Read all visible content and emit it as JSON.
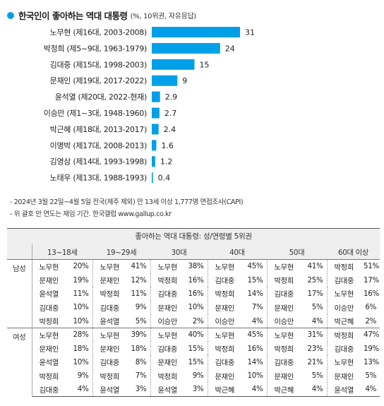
{
  "colors": {
    "accent": "#00a0e9",
    "bar": "#00a0e9"
  },
  "header": {
    "title": "한국인이 좋아하는 역대 대통령",
    "subtitle": "(%, 10위권, 자유응답)"
  },
  "chart_data": {
    "type": "bar",
    "orientation": "horizontal",
    "categories": [
      "노무현 (제16대, 2003-2008)",
      "박정희 (제5~9대, 1963-1979)",
      "김대중 (제15대, 1998-2003)",
      "문재인 (제19대, 2017-2022)",
      "윤석열 (제20대, 2022-현재)",
      "이승만 (제1~3대, 1948-1960)",
      "박근혜 (제18대, 2013-2017)",
      "이명박 (제17대, 2008-2013)",
      "김영삼 (제14대, 1993-1998)",
      "노태우 (제13대, 1988-1993)"
    ],
    "values": [
      31,
      24,
      15,
      9,
      2.9,
      2.7,
      2.4,
      1.6,
      1.2,
      0.4
    ],
    "value_labels": [
      "31",
      "24",
      "15",
      "9",
      "2.9",
      "2.7",
      "2.4",
      "1.6",
      "1.2",
      "0.4"
    ],
    "xlim": [
      0,
      31
    ],
    "grid": false,
    "legend": "none"
  },
  "notes": [
    "- 2024년 3월 22일~4월 5일 전국(제주 제외) 만 13세 이상 1,777명 면접조사(CAPI)",
    "- 위 괄호 안 연도는 재임 기간. 한국갤럽 www.gallup.co.kr"
  ],
  "table": {
    "title": "좋아하는 역대 대통령: 성/연령별 5위권",
    "age_groups": [
      "13~18세",
      "19~29세",
      "30대",
      "40대",
      "50대",
      "60대 이상"
    ],
    "genders": [
      {
        "label": "남성",
        "rows": [
          [
            [
              "노무현",
              "20%"
            ],
            [
              "노무현",
              "41%"
            ],
            [
              "노무현",
              "38%"
            ],
            [
              "노무현",
              "45%"
            ],
            [
              "노무현",
              "41%"
            ],
            [
              "박정희",
              "51%"
            ]
          ],
          [
            [
              "문재인",
              "19%"
            ],
            [
              "문재인",
              "12%"
            ],
            [
              "박정희",
              "16%"
            ],
            [
              "김대중",
              "15%"
            ],
            [
              "박정희",
              "25%"
            ],
            [
              "김대중",
              "17%"
            ]
          ],
          [
            [
              "윤석열",
              "11%"
            ],
            [
              "박정희",
              "11%"
            ],
            [
              "김대중",
              "16%"
            ],
            [
              "박정희",
              "14%"
            ],
            [
              "김대중",
              "17%"
            ],
            [
              "노무현",
              "16%"
            ]
          ],
          [
            [
              "김대중",
              "10%"
            ],
            [
              "김대중",
              "9%"
            ],
            [
              "문재인",
              "10%"
            ],
            [
              "문재인",
              "7%"
            ],
            [
              "문재인",
              "5%"
            ],
            [
              "이승만",
              "6%"
            ]
          ],
          [
            [
              "박정희",
              "10%"
            ],
            [
              "윤석열",
              "5%"
            ],
            [
              "이승만",
              "2%"
            ],
            [
              "이승만",
              "4%"
            ],
            [
              "이승만",
              "4%"
            ],
            [
              "박근혜",
              "2%"
            ]
          ]
        ]
      },
      {
        "label": "여성",
        "rows": [
          [
            [
              "노무현",
              "28%"
            ],
            [
              "노무현",
              "39%"
            ],
            [
              "노무현",
              "40%"
            ],
            [
              "노무현",
              "45%"
            ],
            [
              "노무현",
              "31%"
            ],
            [
              "박정희",
              "47%"
            ]
          ],
          [
            [
              "문재인",
              "18%"
            ],
            [
              "문재인",
              "18%"
            ],
            [
              "김대중",
              "15%"
            ],
            [
              "박정희",
              "16%"
            ],
            [
              "박정희",
              "23%"
            ],
            [
              "김대중",
              "19%"
            ]
          ],
          [
            [
              "윤석열",
              "10%"
            ],
            [
              "김대중",
              "8%"
            ],
            [
              "문재인",
              "15%"
            ],
            [
              "김대중",
              "14%"
            ],
            [
              "김대중",
              "21%"
            ],
            [
              "노무현",
              "13%"
            ]
          ],
          [
            [
              "박정희",
              "9%"
            ],
            [
              "박정희",
              "7%"
            ],
            [
              "박정희",
              "9%"
            ],
            [
              "문재인",
              "10%"
            ],
            [
              "문재인",
              "5%"
            ],
            [
              "문재인",
              "5%"
            ]
          ],
          [
            [
              "김대중",
              "4%"
            ],
            [
              "윤석열",
              "3%"
            ],
            [
              "윤석열",
              "3%"
            ],
            [
              "박근혜",
              "4%"
            ],
            [
              "박근혜",
              "4%"
            ],
            [
              "윤석열",
              "4%"
            ]
          ]
        ]
      }
    ]
  }
}
